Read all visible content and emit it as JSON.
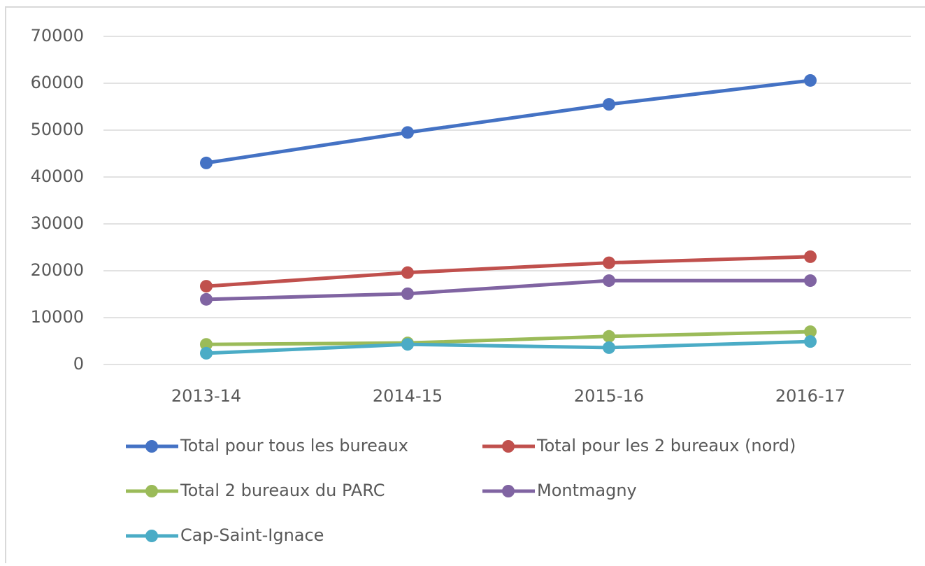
{
  "chart_data": {
    "type": "line",
    "categories": [
      "2013-14",
      "2014-15",
      "2015-16",
      "2016-17"
    ],
    "series": [
      {
        "name": "Total pour tous les bureaux",
        "color": "#4472c4",
        "values": [
          43000,
          49500,
          55500,
          60600
        ]
      },
      {
        "name": "Total pour les 2 bureaux (nord)",
        "color": "#c0504d",
        "values": [
          16700,
          19600,
          21700,
          23000
        ]
      },
      {
        "name": "Total 2 bureaux du PARC",
        "color": "#9bbb59",
        "values": [
          4300,
          4600,
          6000,
          7000
        ]
      },
      {
        "name": "Montmagny",
        "color": "#8064a2",
        "values": [
          13900,
          15100,
          17900,
          17900
        ]
      },
      {
        "name": "Cap-Saint-Ignace",
        "color": "#4bacc6",
        "values": [
          2400,
          4300,
          3600,
          4900
        ]
      }
    ],
    "ylim": [
      0,
      70000
    ],
    "yticks": [
      0,
      10000,
      20000,
      30000,
      40000,
      50000,
      60000,
      70000
    ],
    "grid": true,
    "legend": "bottom"
  }
}
